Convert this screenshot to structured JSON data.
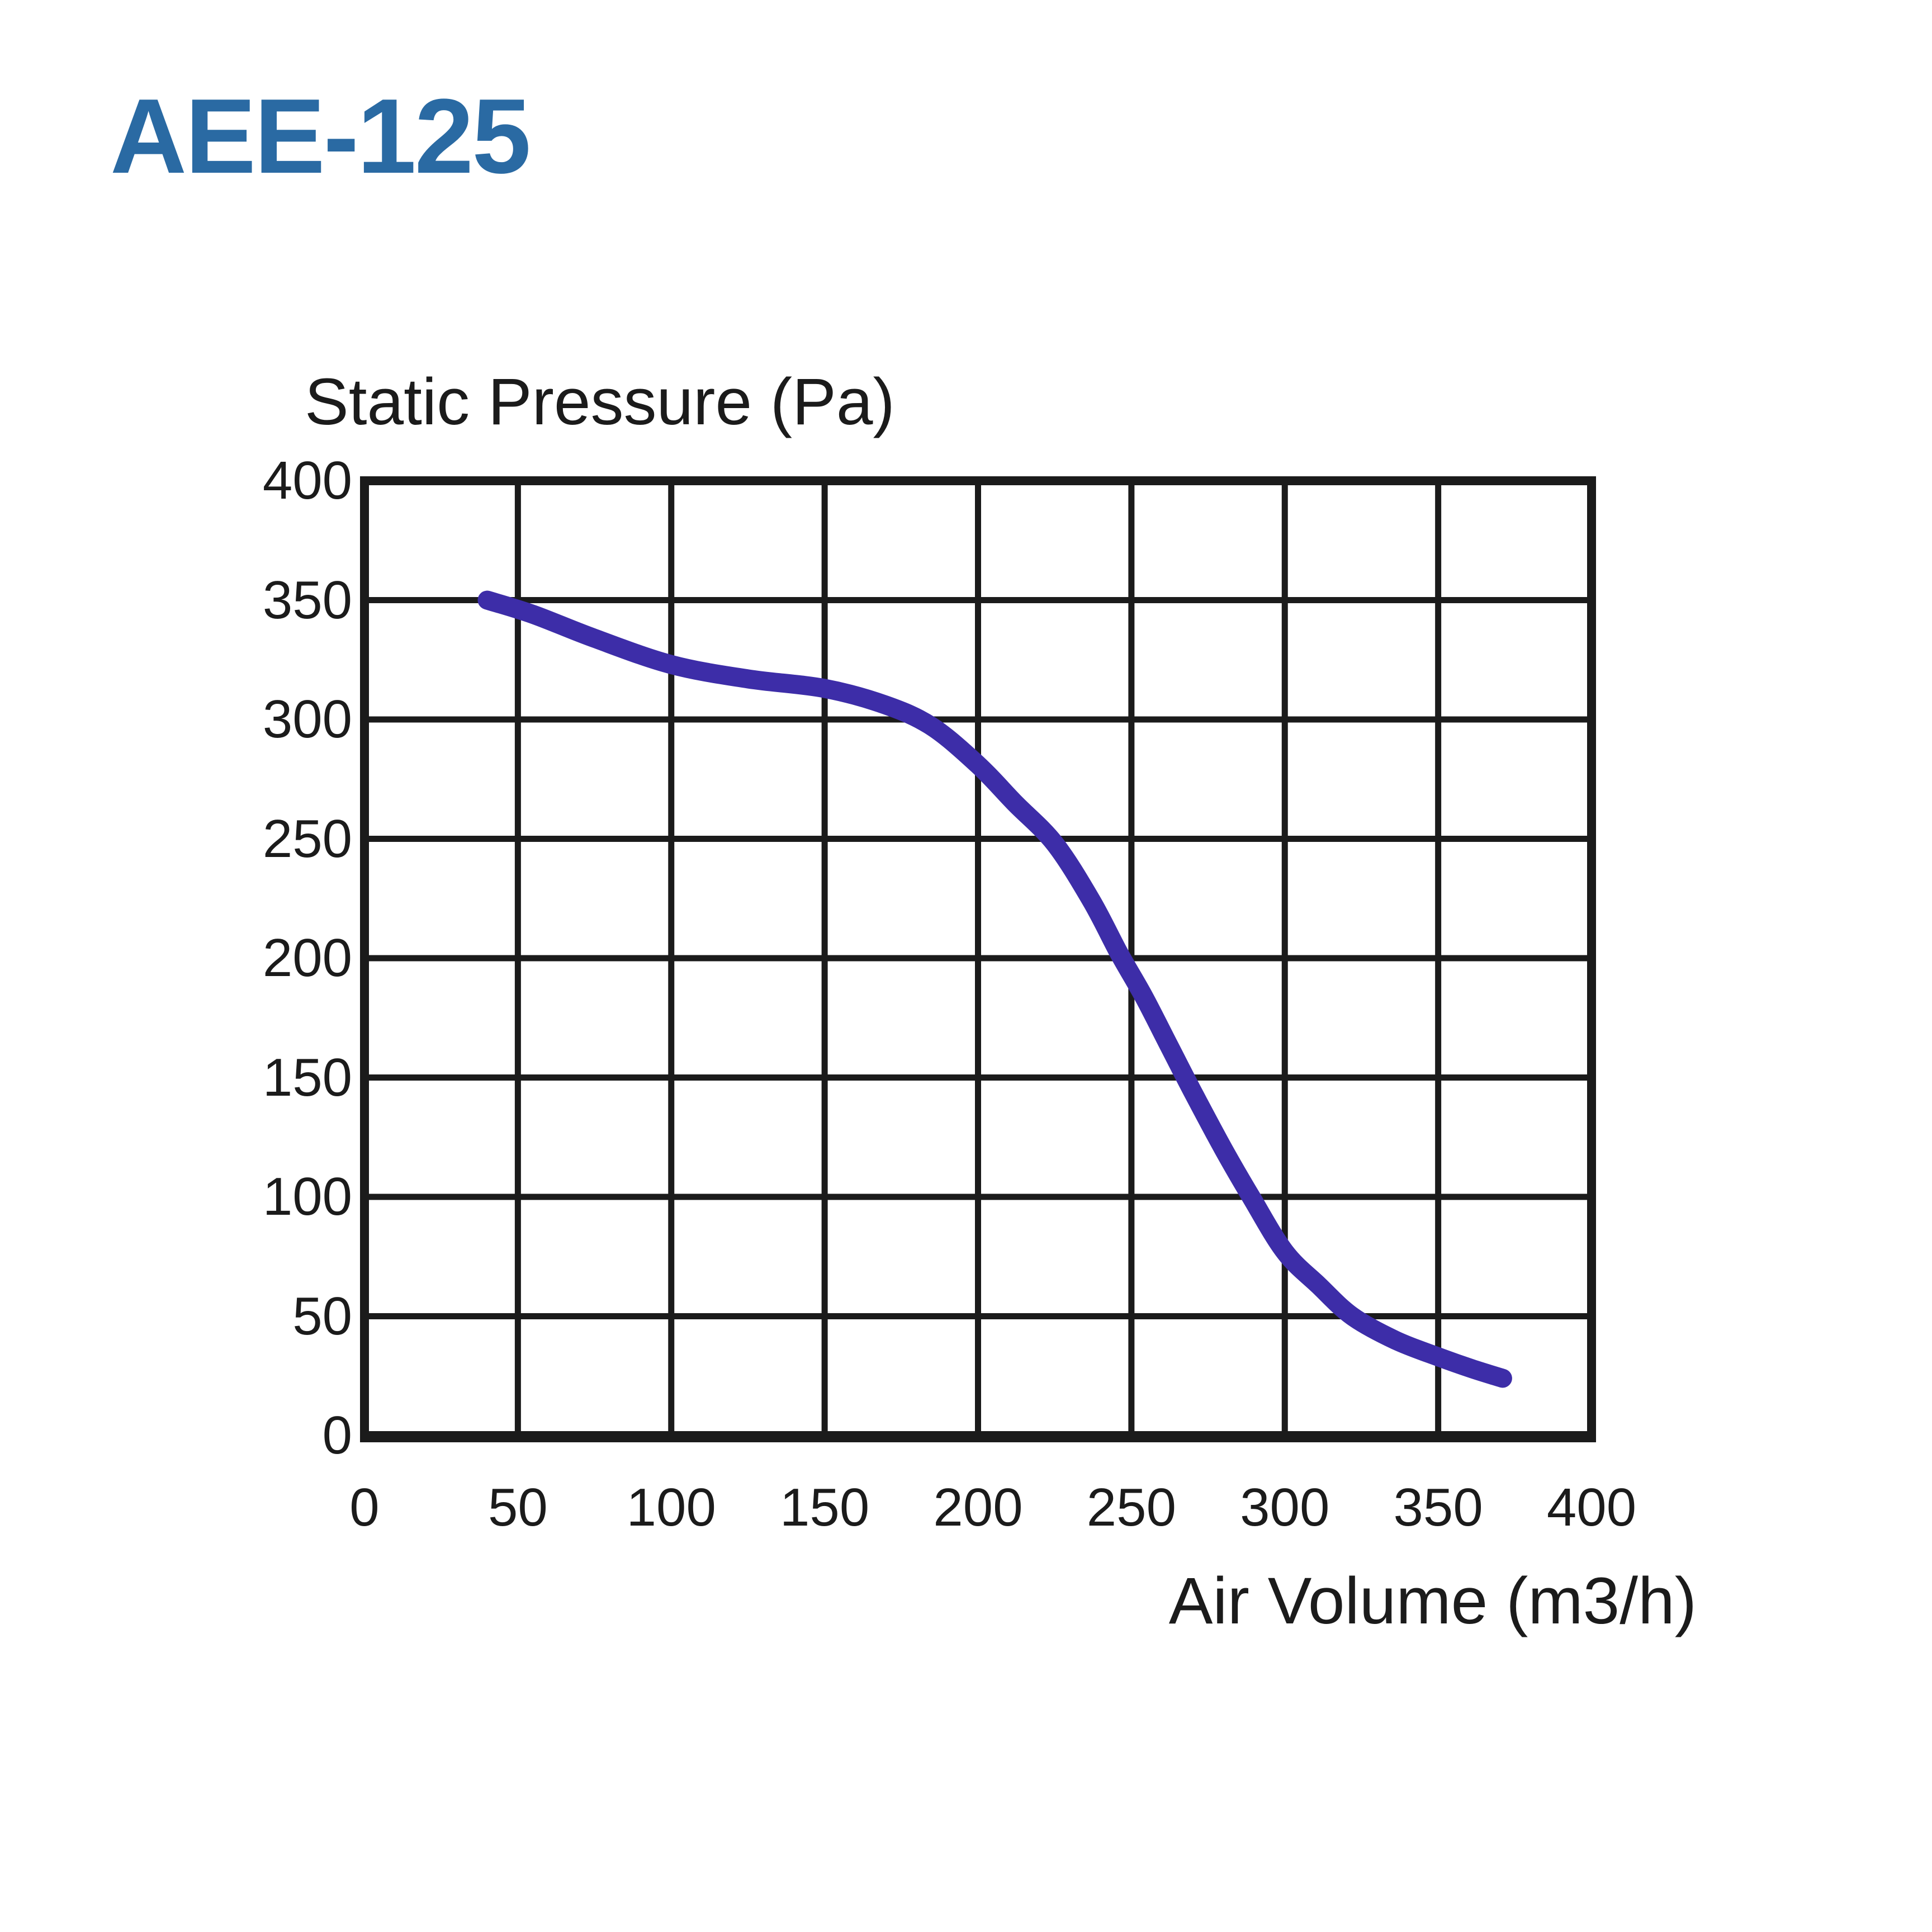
{
  "header": {
    "title": "AEE-125",
    "title_color": "#2a6aa3"
  },
  "chart_data": {
    "type": "line",
    "title": "",
    "ylabel": "Static Pressure (Pa)",
    "xlabel": "Air Volume (m3/h)",
    "x_ticks": [
      "0",
      "50",
      "100",
      "150",
      "200",
      "250",
      "300",
      "350",
      "400"
    ],
    "y_ticks": [
      "400",
      "350",
      "300",
      "250",
      "200",
      "150",
      "100",
      "50",
      "0"
    ],
    "xlim": [
      0,
      400
    ],
    "ylim": [
      0,
      400
    ],
    "grid": true,
    "grid_step": 50,
    "grid_color": "#1b1b1b",
    "legend": "none",
    "line_color": "#3d2da8",
    "series": [
      {
        "name": "AEE-125",
        "points": [
          [
            40,
            350
          ],
          [
            55,
            344
          ],
          [
            75,
            334
          ],
          [
            100,
            323
          ],
          [
            125,
            317
          ],
          [
            150,
            313
          ],
          [
            170,
            306
          ],
          [
            185,
            297
          ],
          [
            200,
            281
          ],
          [
            212,
            265
          ],
          [
            225,
            248
          ],
          [
            237,
            224
          ],
          [
            246,
            202
          ],
          [
            254,
            184
          ],
          [
            262,
            164
          ],
          [
            270,
            144
          ],
          [
            280,
            120
          ],
          [
            289,
            100
          ],
          [
            300,
            77
          ],
          [
            311,
            63
          ],
          [
            322,
            50
          ],
          [
            336,
            40
          ],
          [
            350,
            33
          ],
          [
            361,
            28
          ],
          [
            371,
            24
          ]
        ]
      }
    ]
  }
}
